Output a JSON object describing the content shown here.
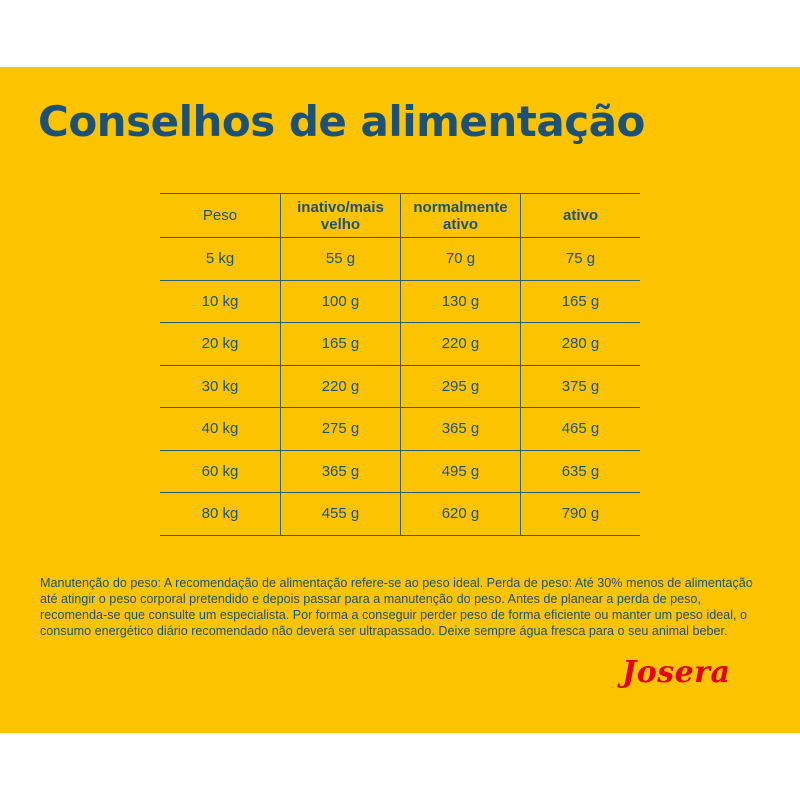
{
  "header": {
    "title": "Conselhos de alimentação"
  },
  "table": {
    "columns": [
      "Peso",
      "inativo/mais velho",
      "normalmente ativo",
      "ativo"
    ],
    "rows": [
      [
        "5 kg",
        "55 g",
        "70 g",
        "75 g"
      ],
      [
        "10 kg",
        "100 g",
        "130 g",
        "165 g"
      ],
      [
        "20 kg",
        "165 g",
        "220 g",
        "280 g"
      ],
      [
        "30 kg",
        "220 g",
        "295 g",
        "375 g"
      ],
      [
        "40 kg",
        "275 g",
        "365 g",
        "465 g"
      ],
      [
        "60 kg",
        "365 g",
        "495 g",
        "635 g"
      ],
      [
        "80 kg",
        "455 g",
        "620 g",
        "790 g"
      ]
    ]
  },
  "footnote": "Manutenção do peso: A recomendação de alimentação refere-se ao peso ideal. Perda de peso: Até 30% menos de alimentação até atingir o peso corporal pretendido e depois passar para a manutenção do peso. Antes de planear a perda de peso, recomenda-se que consulte um especialista. Por forma a conseguir perder peso de forma eficiente ou manter um peso ideal, o consumo energético diário recomendado não deverá ser ultrapassado. Deixe sempre água fresca para o seu animal beber.",
  "brand": "Josera"
}
